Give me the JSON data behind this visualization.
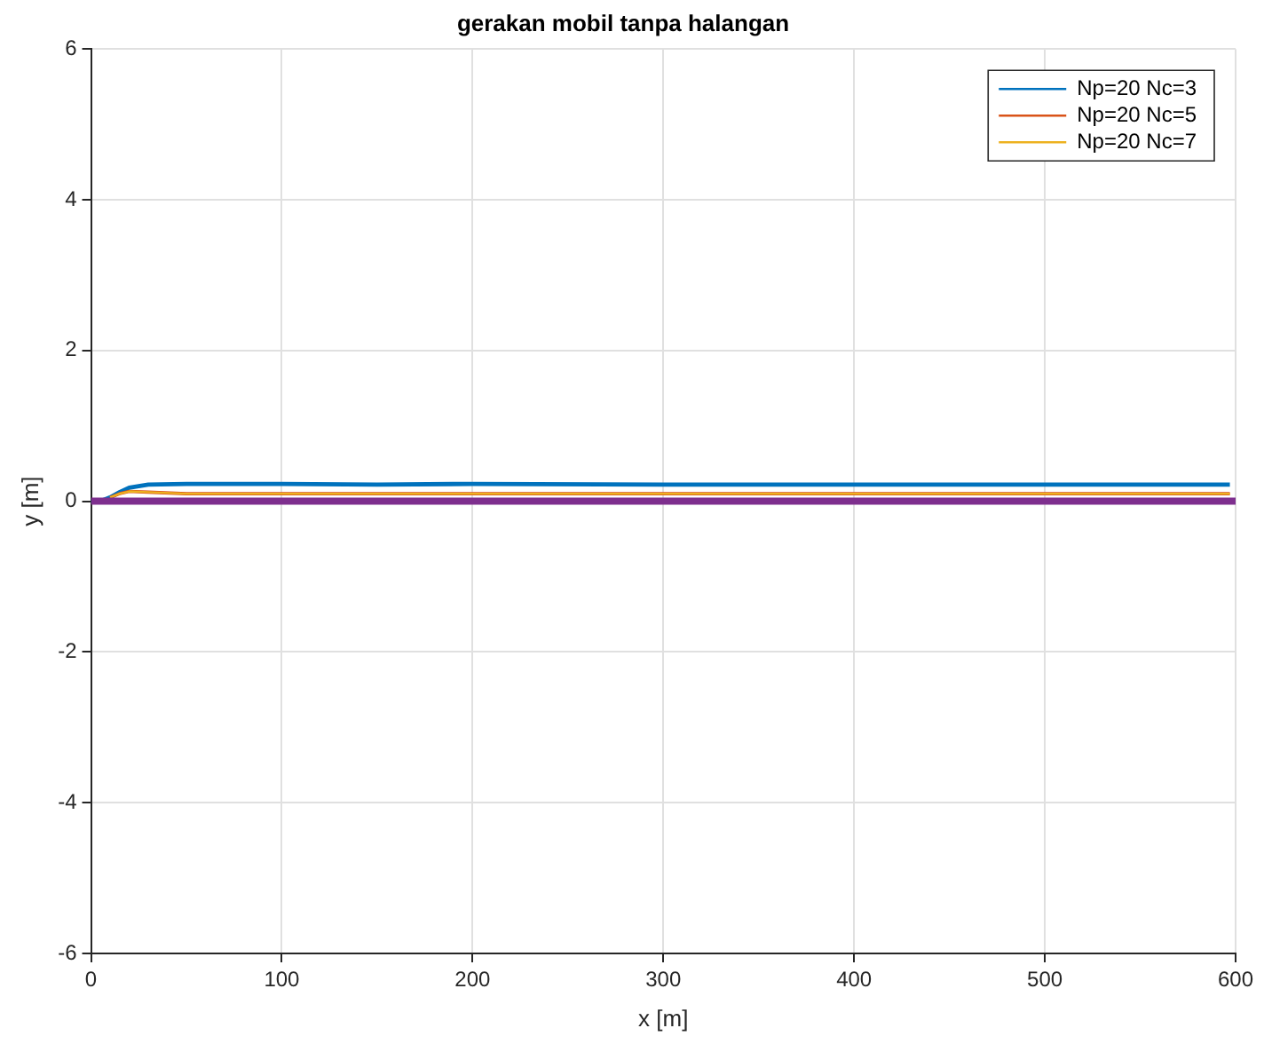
{
  "chart_data": {
    "type": "line",
    "title": "gerakan mobil tanpa halangan",
    "xlabel": "x [m]",
    "ylabel": "y [m]",
    "xlim": [
      0,
      600
    ],
    "xticks": [
      0,
      100,
      200,
      300,
      400,
      500,
      600
    ],
    "ylim": [
      -6,
      6
    ],
    "yticks": [
      -6,
      -4,
      -2,
      0,
      2,
      4,
      6
    ],
    "grid": true,
    "legend": "top right",
    "marker": "none",
    "line_style": "solid",
    "series": [
      {
        "name": "Np=20 Nc=3",
        "color": "#0072bd",
        "x": [
          0,
          5,
          10,
          15,
          20,
          30,
          50,
          100,
          150,
          200,
          300,
          400,
          500,
          597
        ],
        "values": [
          0,
          0,
          0.05,
          0.12,
          0.18,
          0.22,
          0.23,
          0.23,
          0.22,
          0.23,
          0.22,
          0.22,
          0.22,
          0.22
        ]
      },
      {
        "name": "Np=20 Nc=5",
        "color": "#d95319",
        "x": [
          10,
          15,
          20,
          30,
          50,
          100,
          300,
          597
        ],
        "values": [
          0.05,
          0.1,
          0.13,
          0.12,
          0.1,
          0.1,
          0.1,
          0.1
        ]
      },
      {
        "name": "Np=20 Nc=7",
        "color": "#edb120",
        "x": [
          10,
          15,
          20,
          30,
          50,
          100,
          300,
          597
        ],
        "values": [
          0.05,
          0.1,
          0.13,
          0.12,
          0.1,
          0.1,
          0.1,
          0.1
        ]
      },
      {
        "color": "#7e2f8e",
        "x": [
          0,
          600
        ],
        "values": [
          0,
          0
        ]
      }
    ]
  }
}
